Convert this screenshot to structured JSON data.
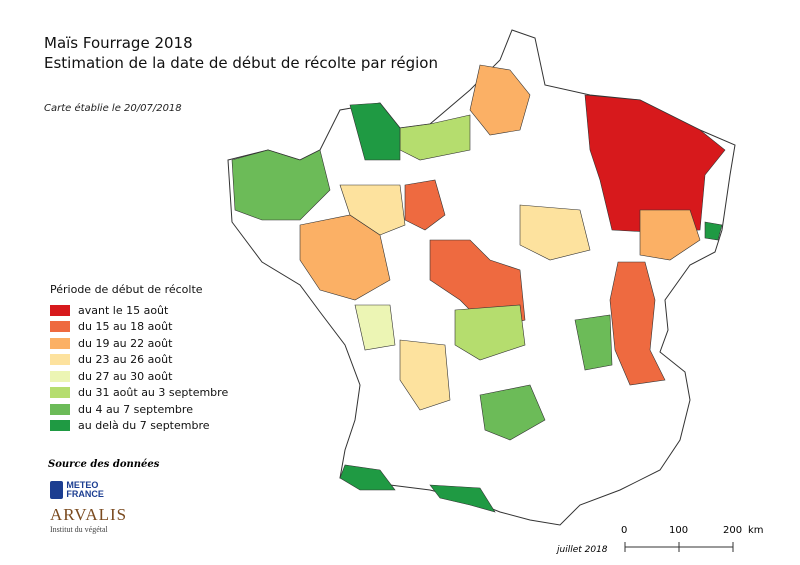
{
  "title_line1": "Maïs Fourrage 2018",
  "title_line2": "Estimation de la date de début de récolte par région",
  "map_date": "Carte établie le 20/07/2018",
  "legend": {
    "title": "Période de début de récolte",
    "classes": [
      {
        "label": "avant le 15 août",
        "color": "#d7191c"
      },
      {
        "label": "du 15 au 18 août",
        "color": "#ee6a40"
      },
      {
        "label": "du 19 au 22 août",
        "color": "#fbb065"
      },
      {
        "label": "du 23 au 26 août",
        "color": "#fde29e"
      },
      {
        "label": "du 27 au 30 août",
        "color": "#ecf5b4"
      },
      {
        "label": "du 31 août au 3 septembre",
        "color": "#b5dd6e"
      },
      {
        "label": "du 4 au 7 septembre",
        "color": "#6cbb58"
      },
      {
        "label": "au delà du 7 septembre",
        "color": "#1f9a43"
      }
    ]
  },
  "source_label": "Source des données",
  "logos": {
    "meteo": "METEO FRANCE",
    "arvalis": "ARVALIS",
    "arvalis_sub": "Institut du végétal"
  },
  "footer_date": "juillet 2018",
  "scale": {
    "ticks": [
      "0",
      "100",
      "200"
    ],
    "unit": "km"
  }
}
